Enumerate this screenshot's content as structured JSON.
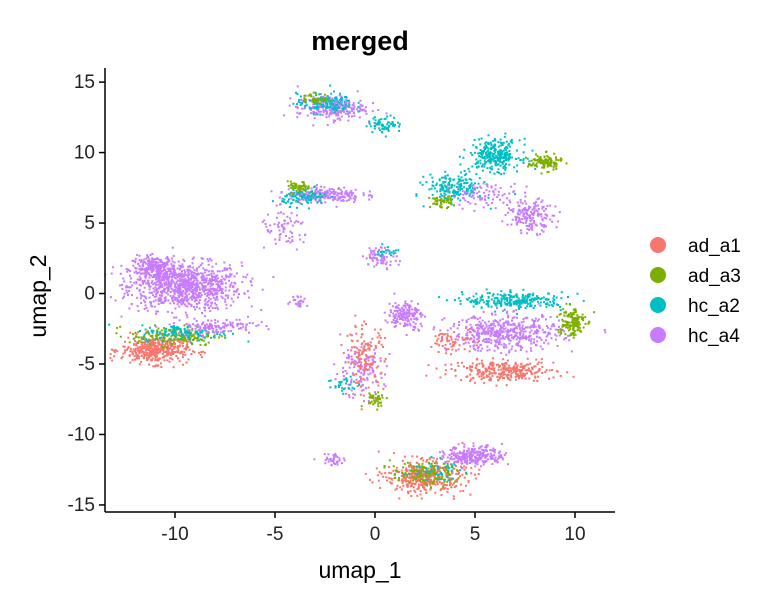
{
  "chart_data": {
    "type": "scatter",
    "title": "merged",
    "xlabel": "umap_1",
    "ylabel": "umap_2",
    "xlim": [
      -13.5,
      12
    ],
    "ylim": [
      -15.5,
      16
    ],
    "xticks": [
      -10,
      -5,
      0,
      5,
      10
    ],
    "yticks": [
      15,
      10,
      5,
      0,
      -5,
      -10,
      -15
    ],
    "grid": false,
    "legend_position": "right",
    "series": [
      {
        "name": "ad_a1",
        "color": "#F8766D"
      },
      {
        "name": "ad_a3",
        "color": "#7CAE00"
      },
      {
        "name": "hc_a2",
        "color": "#00BFC4"
      },
      {
        "name": "hc_a4",
        "color": "#C77CFF"
      }
    ],
    "clusters": [
      {
        "series": "hc_a4",
        "cx": -9.5,
        "cy": 0.5,
        "sx": 2.0,
        "sy": 1.2,
        "n": 900
      },
      {
        "series": "hc_a4",
        "cx": -11.0,
        "cy": 1.8,
        "sx": 0.8,
        "sy": 0.6,
        "n": 250
      },
      {
        "series": "ad_a1",
        "cx": -11.0,
        "cy": -4.0,
        "sx": 1.2,
        "sy": 0.7,
        "n": 420
      },
      {
        "series": "ad_a3",
        "cx": -10.0,
        "cy": -3.0,
        "sx": 1.6,
        "sy": 0.5,
        "n": 160
      },
      {
        "series": "hc_a2",
        "cx": -9.5,
        "cy": -2.8,
        "sx": 1.6,
        "sy": 0.4,
        "n": 120
      },
      {
        "series": "hc_a4",
        "cx": -8.0,
        "cy": -2.3,
        "sx": 1.4,
        "sy": 0.4,
        "n": 120
      },
      {
        "series": "hc_a4",
        "cx": -2.2,
        "cy": 13.2,
        "sx": 1.2,
        "sy": 0.6,
        "n": 260
      },
      {
        "series": "hc_a2",
        "cx": -2.5,
        "cy": 13.5,
        "sx": 1.0,
        "sy": 0.5,
        "n": 130
      },
      {
        "series": "ad_a3",
        "cx": -3.0,
        "cy": 13.8,
        "sx": 0.5,
        "sy": 0.3,
        "n": 40
      },
      {
        "series": "hc_a2",
        "cx": 0.5,
        "cy": 12.0,
        "sx": 0.6,
        "sy": 0.4,
        "n": 70
      },
      {
        "series": "hc_a4",
        "cx": -2.5,
        "cy": 7.0,
        "sx": 1.3,
        "sy": 0.4,
        "n": 200
      },
      {
        "series": "ad_a3",
        "cx": -3.8,
        "cy": 7.5,
        "sx": 0.4,
        "sy": 0.3,
        "n": 60
      },
      {
        "series": "hc_a2",
        "cx": -3.5,
        "cy": 6.8,
        "sx": 0.8,
        "sy": 0.4,
        "n": 90
      },
      {
        "series": "hc_a4",
        "cx": -4.5,
        "cy": 4.5,
        "sx": 0.9,
        "sy": 1.0,
        "n": 70
      },
      {
        "series": "hc_a2",
        "cx": 6.0,
        "cy": 9.8,
        "sx": 0.9,
        "sy": 0.8,
        "n": 280
      },
      {
        "series": "hc_a2",
        "cx": 4.0,
        "cy": 7.5,
        "sx": 1.0,
        "sy": 0.7,
        "n": 180
      },
      {
        "series": "ad_a3",
        "cx": 8.5,
        "cy": 9.3,
        "sx": 0.6,
        "sy": 0.4,
        "n": 120
      },
      {
        "series": "ad_a3",
        "cx": 3.3,
        "cy": 6.5,
        "sx": 0.4,
        "sy": 0.3,
        "n": 50
      },
      {
        "series": "hc_a4",
        "cx": 7.8,
        "cy": 5.5,
        "sx": 0.8,
        "sy": 0.8,
        "n": 170
      },
      {
        "series": "hc_a4",
        "cx": 5.5,
        "cy": 7.0,
        "sx": 1.2,
        "sy": 0.6,
        "n": 80
      },
      {
        "series": "hc_a4",
        "cx": 0.3,
        "cy": 2.6,
        "sx": 0.6,
        "sy": 0.5,
        "n": 70
      },
      {
        "series": "hc_a2",
        "cx": 0.6,
        "cy": 3.0,
        "sx": 0.4,
        "sy": 0.3,
        "n": 20
      },
      {
        "series": "hc_a4",
        "cx": 1.5,
        "cy": -1.5,
        "sx": 0.6,
        "sy": 0.7,
        "n": 160
      },
      {
        "series": "hc_a4",
        "cx": -0.8,
        "cy": -5.5,
        "sx": 0.9,
        "sy": 1.3,
        "n": 140
      },
      {
        "series": "ad_a1",
        "cx": -0.5,
        "cy": -4.5,
        "sx": 0.7,
        "sy": 1.6,
        "n": 130
      },
      {
        "series": "ad_a3",
        "cx": 0.0,
        "cy": -7.5,
        "sx": 0.4,
        "sy": 0.4,
        "n": 40
      },
      {
        "series": "hc_a2",
        "cx": -1.5,
        "cy": -6.5,
        "sx": 0.6,
        "sy": 0.5,
        "n": 30
      },
      {
        "series": "hc_a4",
        "cx": -3.8,
        "cy": -0.5,
        "sx": 0.3,
        "sy": 0.3,
        "n": 25
      },
      {
        "series": "hc_a2",
        "cx": 7.0,
        "cy": -0.5,
        "sx": 1.8,
        "sy": 0.4,
        "n": 260
      },
      {
        "series": "hc_a4",
        "cx": 6.5,
        "cy": -2.8,
        "sx": 2.0,
        "sy": 0.9,
        "n": 480
      },
      {
        "series": "ad_a1",
        "cx": 6.5,
        "cy": -5.5,
        "sx": 1.8,
        "sy": 0.5,
        "n": 300
      },
      {
        "series": "ad_a3",
        "cx": 9.8,
        "cy": -2.0,
        "sx": 0.5,
        "sy": 0.8,
        "n": 140
      },
      {
        "series": "ad_a1",
        "cx": 4.0,
        "cy": -3.5,
        "sx": 0.8,
        "sy": 0.8,
        "n": 60
      },
      {
        "series": "ad_a1",
        "cx": 2.5,
        "cy": -13.0,
        "sx": 1.4,
        "sy": 0.8,
        "n": 420
      },
      {
        "series": "ad_a3",
        "cx": 2.5,
        "cy": -12.8,
        "sx": 1.2,
        "sy": 0.6,
        "n": 120
      },
      {
        "series": "hc_a2",
        "cx": 3.0,
        "cy": -12.5,
        "sx": 1.0,
        "sy": 0.5,
        "n": 40
      },
      {
        "series": "hc_a4",
        "cx": 5.0,
        "cy": -11.5,
        "sx": 1.0,
        "sy": 0.5,
        "n": 260
      },
      {
        "series": "hc_a4",
        "cx": -2.0,
        "cy": -11.8,
        "sx": 0.5,
        "sy": 0.3,
        "n": 40
      }
    ]
  }
}
